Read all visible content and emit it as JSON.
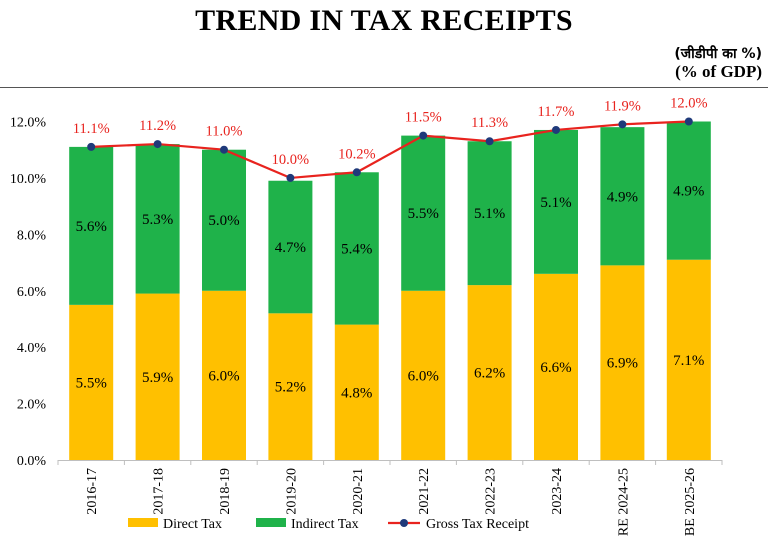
{
  "header": {
    "title": "TREND IN TAX RECEIPTS",
    "unit_hindi": "(जीडीपी का %)",
    "unit_english": "(% of GDP)"
  },
  "chart_data": {
    "type": "bar",
    "stacked": true,
    "categories": [
      "2016-17",
      "2017-18",
      "2018-19",
      "2019-20",
      "2020-21",
      "2021-22",
      "2022-23",
      "2023-24",
      "RE 2024-25",
      "BE 2025-26"
    ],
    "series": [
      {
        "name": "Direct Tax",
        "kind": "bar",
        "color": "#ffc000",
        "values": [
          5.5,
          5.9,
          6.0,
          5.2,
          4.8,
          6.0,
          6.2,
          6.6,
          6.9,
          7.1
        ],
        "labels": [
          "5.5%",
          "5.9%",
          "6.0%",
          "5.2%",
          "4.8%",
          "6.0%",
          "6.2%",
          "6.6%",
          "6.9%",
          "7.1%"
        ]
      },
      {
        "name": "Indirect Tax",
        "kind": "bar",
        "color": "#1fb24a",
        "values": [
          5.6,
          5.3,
          5.0,
          4.7,
          5.4,
          5.5,
          5.1,
          5.1,
          4.9,
          4.9
        ],
        "labels": [
          "5.6%",
          "5.3%",
          "5.0%",
          "4.7%",
          "5.4%",
          "5.5%",
          "5.1%",
          "5.1%",
          "4.9%",
          "4.9%"
        ]
      },
      {
        "name": "Gross Tax Receipt",
        "kind": "line",
        "color": "#e8231e",
        "marker_color": "#1f3a7a",
        "values": [
          11.1,
          11.2,
          11.0,
          10.0,
          10.2,
          11.5,
          11.3,
          11.7,
          11.9,
          12.0
        ],
        "labels": [
          "11.1%",
          "11.2%",
          "11.0%",
          "10.0%",
          "10.2%",
          "11.5%",
          "11.3%",
          "11.7%",
          "11.9%",
          "12.0%"
        ]
      }
    ],
    "y_ticks": [
      "0.0%",
      "2.0%",
      "4.0%",
      "6.0%",
      "8.0%",
      "10.0%",
      "12.0%"
    ],
    "ylim": [
      0,
      12
    ],
    "grid": false,
    "legend_position": "bottom"
  }
}
